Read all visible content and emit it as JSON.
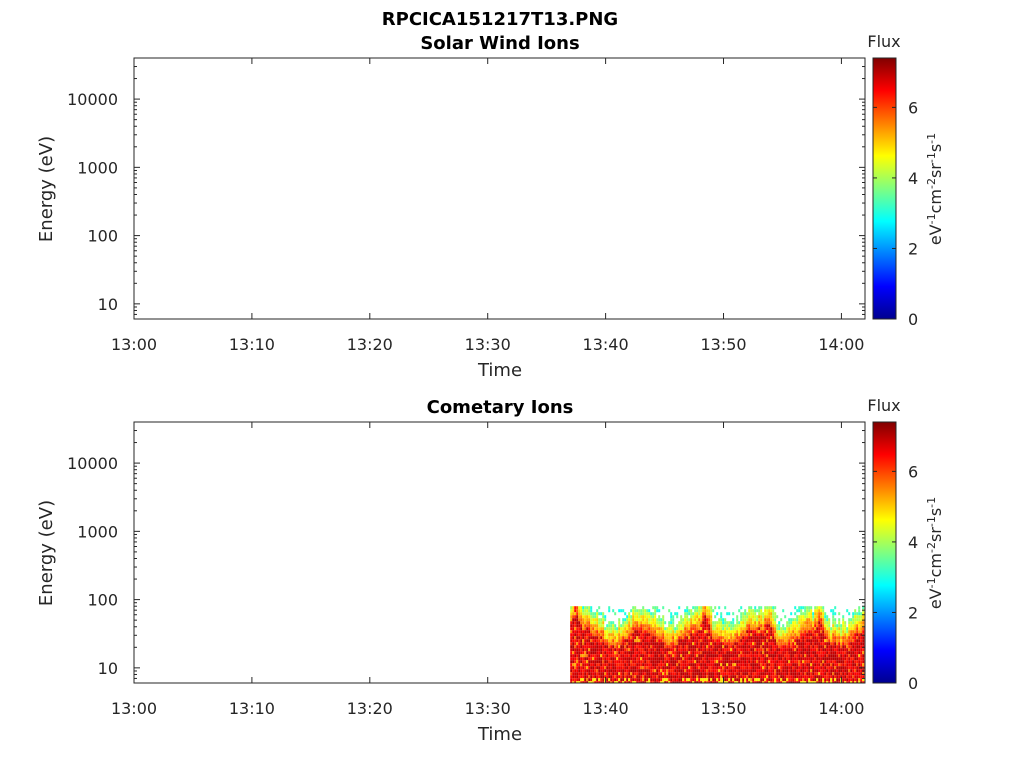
{
  "figure_title": "RPCICA151217T13.PNG",
  "chart_data": [
    {
      "type": "heatmap",
      "title": "Solar Wind Ions",
      "xlabel": "Time",
      "ylabel": "Energy (eV)",
      "x_ticks": [
        "13:00",
        "13:10",
        "13:20",
        "13:30",
        "13:40",
        "13:50",
        "14:00"
      ],
      "y_ticks": [
        "10",
        "100",
        "1000",
        "10000"
      ],
      "y_scale": "log",
      "ylim": [
        6,
        40000
      ],
      "xlim": [
        "13:00",
        "14:02"
      ],
      "colorbar": {
        "label": "Flux",
        "units": "eV-1cm-2sr-1s-1",
        "ticks": [
          "0",
          "2",
          "4",
          "6"
        ],
        "range": [
          0,
          7.4
        ],
        "colormap": "jet"
      },
      "data": []
    },
    {
      "type": "heatmap",
      "title": "Cometary Ions",
      "xlabel": "Time",
      "ylabel": "Energy (eV)",
      "x_ticks": [
        "13:00",
        "13:10",
        "13:20",
        "13:30",
        "13:40",
        "13:50",
        "14:00"
      ],
      "y_ticks": [
        "10",
        "100",
        "1000",
        "10000"
      ],
      "y_scale": "log",
      "ylim": [
        6,
        40000
      ],
      "xlim": [
        "13:00",
        "14:02"
      ],
      "colorbar": {
        "label": "Flux",
        "units": "eV-1cm-2sr-1s-1",
        "ticks": [
          "0",
          "2",
          "4",
          "6"
        ],
        "range": [
          0,
          7.4
        ],
        "colormap": "jet"
      },
      "data": {
        "time_start": "13:37",
        "time_end": "14:02",
        "energy_min": 6,
        "energy_max": 80,
        "flux_max": 7.0
      }
    }
  ]
}
